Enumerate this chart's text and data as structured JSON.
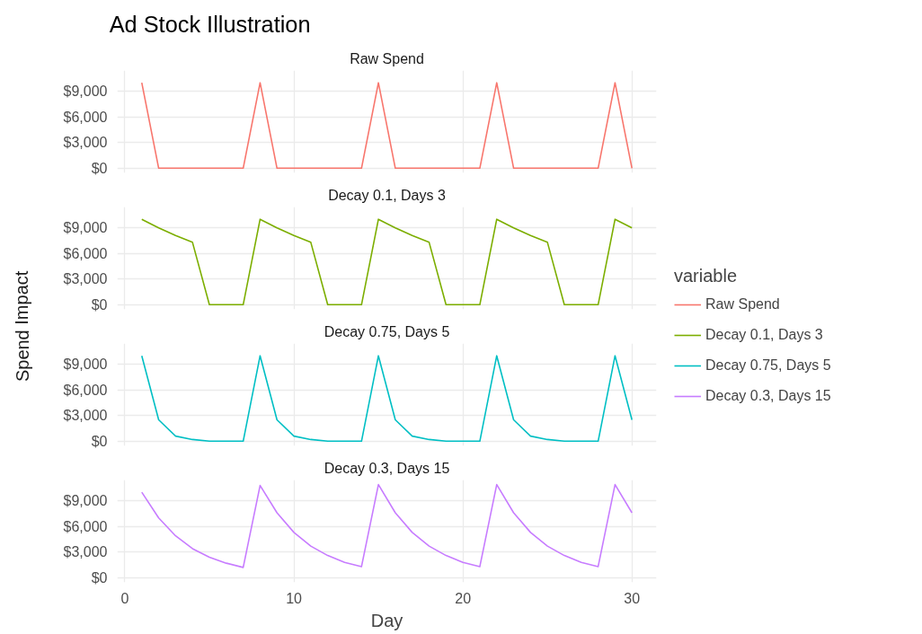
{
  "chart_data": [
    {
      "type": "line",
      "title": "Ad Stock Illustration",
      "subtitle": "Raw Spend",
      "ylabel": "Spend Impact",
      "legend_title": "variable",
      "legend": "right",
      "grid": true,
      "tick_labels": "y",
      "x": [
        1,
        2,
        3,
        4,
        5,
        6,
        7,
        8,
        9,
        10,
        11,
        12,
        13,
        14,
        15,
        16,
        17,
        18,
        19,
        20,
        21,
        22,
        23,
        24,
        25,
        26,
        27,
        28,
        29,
        30
      ],
      "xlim": [
        -0.45,
        31.45
      ],
      "xticks": [
        0,
        10,
        20,
        30
      ],
      "ylim": [
        -545,
        11437
      ],
      "yticks": [
        {
          "value": 0,
          "label": "$0"
        },
        {
          "value": 3000,
          "label": "$3,000"
        },
        {
          "value": 6000,
          "label": "$6,000"
        },
        {
          "value": 9000,
          "label": "$9,000"
        }
      ],
      "series": [
        {
          "name": "Raw Spend",
          "color": "#f8766d",
          "values": [
            10000,
            0,
            0,
            0,
            0,
            0,
            0,
            10000,
            0,
            0,
            0,
            0,
            0,
            0,
            10000,
            0,
            0,
            0,
            0,
            0,
            0,
            10000,
            0,
            0,
            0,
            0,
            0,
            0,
            10000,
            0
          ]
        }
      ]
    },
    {
      "type": "line",
      "subtitle": "Decay 0.1, Days 3",
      "legend": "right",
      "grid": true,
      "tick_labels": "y",
      "x": [
        1,
        2,
        3,
        4,
        5,
        6,
        7,
        8,
        9,
        10,
        11,
        12,
        13,
        14,
        15,
        16,
        17,
        18,
        19,
        20,
        21,
        22,
        23,
        24,
        25,
        26,
        27,
        28,
        29,
        30
      ],
      "xlim": [
        -0.45,
        31.45
      ],
      "xticks": [
        0,
        10,
        20,
        30
      ],
      "ylim": [
        -545,
        11437
      ],
      "yticks": [
        {
          "value": 0,
          "label": "$0"
        },
        {
          "value": 3000,
          "label": "$3,000"
        },
        {
          "value": 6000,
          "label": "$6,000"
        },
        {
          "value": 9000,
          "label": "$9,000"
        }
      ],
      "series": [
        {
          "name": "Decay 0.1, Days 3",
          "color": "#7cae00",
          "values": [
            10000,
            9000,
            8100,
            7300,
            0,
            0,
            0,
            10000,
            9000,
            8100,
            7300,
            0,
            0,
            0,
            10000,
            9000,
            8100,
            7300,
            0,
            0,
            0,
            10000,
            9000,
            8100,
            7300,
            0,
            0,
            0,
            10000,
            9000
          ]
        }
      ]
    },
    {
      "type": "line",
      "subtitle": "Decay 0.75, Days 5",
      "legend": "right",
      "grid": true,
      "tick_labels": "y",
      "x": [
        1,
        2,
        3,
        4,
        5,
        6,
        7,
        8,
        9,
        10,
        11,
        12,
        13,
        14,
        15,
        16,
        17,
        18,
        19,
        20,
        21,
        22,
        23,
        24,
        25,
        26,
        27,
        28,
        29,
        30
      ],
      "xlim": [
        -0.45,
        31.45
      ],
      "xticks": [
        0,
        10,
        20,
        30
      ],
      "ylim": [
        -545,
        11437
      ],
      "yticks": [
        {
          "value": 0,
          "label": "$0"
        },
        {
          "value": 3000,
          "label": "$3,000"
        },
        {
          "value": 6000,
          "label": "$6,000"
        },
        {
          "value": 9000,
          "label": "$9,000"
        }
      ],
      "series": [
        {
          "name": "Decay 0.75, Days 5",
          "color": "#00bfc4",
          "values": [
            10000,
            2500,
            600,
            200,
            0,
            0,
            0,
            10000,
            2500,
            600,
            200,
            0,
            0,
            0,
            10000,
            2500,
            600,
            200,
            0,
            0,
            0,
            10000,
            2500,
            600,
            200,
            0,
            0,
            0,
            10000,
            2500
          ]
        }
      ]
    },
    {
      "type": "line",
      "subtitle": "Decay 0.3, Days 15",
      "xlabel": "Day",
      "legend": "right",
      "grid": true,
      "x": [
        1,
        2,
        3,
        4,
        5,
        6,
        7,
        8,
        9,
        10,
        11,
        12,
        13,
        14,
        15,
        16,
        17,
        18,
        19,
        20,
        21,
        22,
        23,
        24,
        25,
        26,
        27,
        28,
        29,
        30
      ],
      "xlim": [
        -0.45,
        31.45
      ],
      "xticks": [
        0,
        10,
        20,
        30
      ],
      "ylim": [
        -545,
        11437
      ],
      "yticks": [
        {
          "value": 0,
          "label": "$0"
        },
        {
          "value": 3000,
          "label": "$3,000"
        },
        {
          "value": 6000,
          "label": "$6,000"
        },
        {
          "value": 9000,
          "label": "$9,000"
        }
      ],
      "series": [
        {
          "name": "Decay 0.3, Days 15",
          "color": "#c77cff",
          "values": [
            10000,
            7000,
            4900,
            3400,
            2400,
            1700,
            1200,
            10800,
            7600,
            5300,
            3700,
            2600,
            1800,
            1300,
            10900,
            7600,
            5300,
            3700,
            2600,
            1800,
            1300,
            10900,
            7600,
            5300,
            3700,
            2600,
            1800,
            1300,
            10900,
            7600
          ]
        }
      ]
    }
  ]
}
